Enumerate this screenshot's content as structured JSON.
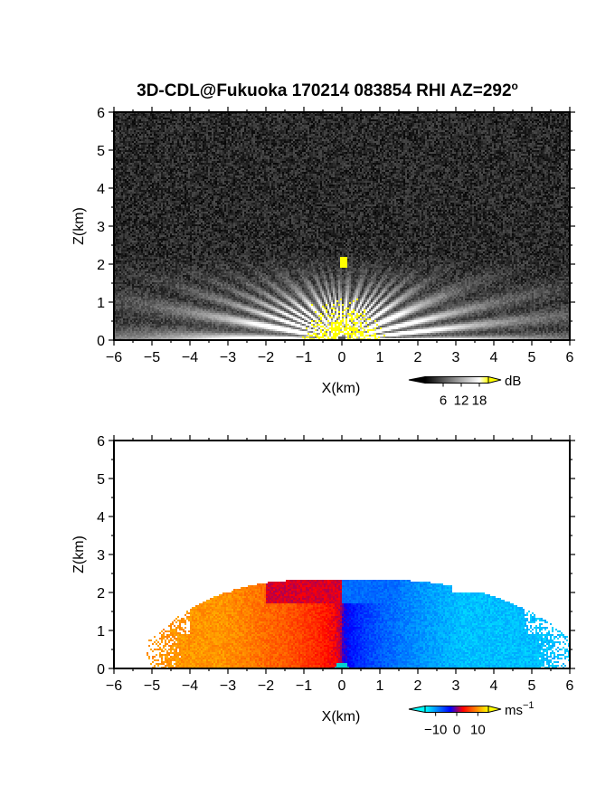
{
  "figure": {
    "title": "3D-CDL@Fukuoka 170214 083854 RHI AZ=292",
    "title_sup": "o"
  },
  "chart_data": [
    {
      "type": "heatmap",
      "name": "reflectivity",
      "xlabel": "X(km)",
      "ylabel": "Z(km)",
      "xlim": [
        -6,
        6
      ],
      "ylim": [
        0,
        6
      ],
      "xticks": [
        -6,
        -5,
        -4,
        -3,
        -2,
        -1,
        0,
        1,
        2,
        3,
        4,
        5,
        6
      ],
      "yticks": [
        0,
        1,
        2,
        3,
        4,
        5,
        6
      ],
      "grid": false,
      "colorbar": {
        "unit": "dB",
        "unit_sup": "",
        "ticks": [
          6,
          12,
          18
        ],
        "range": [
          0,
          21
        ],
        "colors": [
          "#000000",
          "#2a2a2a",
          "#555555",
          "#808080",
          "#aaaaaa",
          "#d4d4d4",
          "#ffffff",
          "#ffff00"
        ]
      },
      "features": {
        "echo_top_km": 2.3,
        "strong_echo_max_range_km": 1.1,
        "strong_echo_max_height_km": 1.1,
        "isolated_strong_echo": {
          "x_km": 0.05,
          "z_km": 2.05
        },
        "background_color": "#2a2a2a",
        "high_value_color": "#ffff00"
      }
    },
    {
      "type": "heatmap",
      "name": "doppler_velocity",
      "xlabel": "X(km)",
      "ylabel": "Z(km)",
      "xlim": [
        -6,
        6
      ],
      "ylim": [
        0,
        6
      ],
      "xticks": [
        -6,
        -5,
        -4,
        -3,
        -2,
        -1,
        0,
        1,
        2,
        3,
        4,
        5,
        6
      ],
      "yticks": [
        0,
        1,
        2,
        3,
        4,
        5,
        6
      ],
      "grid": false,
      "colorbar": {
        "unit": "ms",
        "unit_sup": "−1",
        "ticks": [
          "−10",
          "0",
          "10"
        ],
        "tick_values": [
          -10,
          0,
          10
        ],
        "range": [
          -15,
          15
        ],
        "colors": [
          "#00ffff",
          "#0080ff",
          "#0000ff",
          "#ff0000",
          "#ff8000",
          "#ffff00"
        ]
      },
      "features": {
        "echo_top_km": 2.35,
        "left_extent_km": -5.0,
        "right_extent_km": 6.0,
        "negative_side": "x>0 (blue to cyan, toward radar)",
        "positive_side": "x<0 (red to yellow, away from radar)",
        "velocity_near_origin_ms": 0,
        "velocity_far_left_ms": 10,
        "velocity_far_right_ms": -12
      }
    }
  ]
}
